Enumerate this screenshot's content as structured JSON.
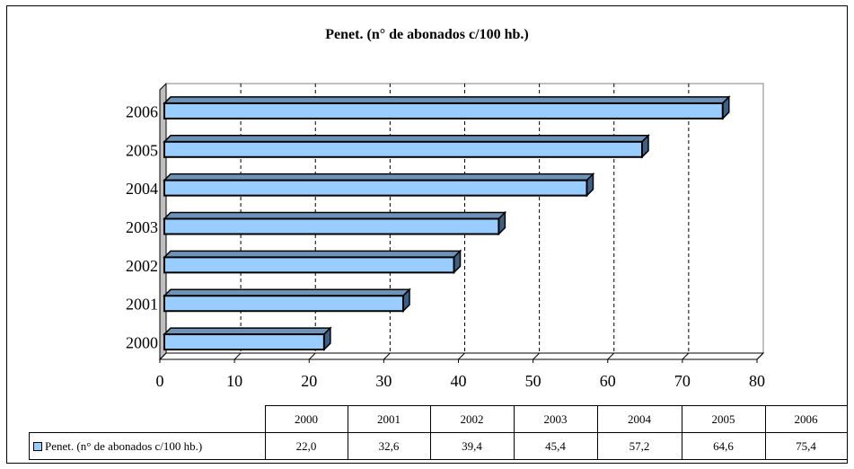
{
  "chart_data": {
    "type": "bar",
    "orientation": "horizontal",
    "three_d": true,
    "title": "Penet. (n° de abonados c/100 hb.)",
    "categories": [
      "2000",
      "2001",
      "2002",
      "2003",
      "2004",
      "2005",
      "2006"
    ],
    "series": [
      {
        "name": "Penet. (n° de abonados c/100 hb.)",
        "values": [
          22.0,
          32.6,
          39.4,
          45.4,
          57.2,
          64.6,
          75.4
        ],
        "value_labels": [
          "22,0",
          "32,6",
          "39,4",
          "45,4",
          "57,2",
          "64,6",
          "75,4"
        ],
        "color": "#99CCFF"
      }
    ],
    "xlim": [
      0,
      80
    ],
    "xticks": [
      "0",
      "10",
      "20",
      "30",
      "40",
      "50",
      "60",
      "70",
      "80"
    ],
    "gridlines": "dashed vertical",
    "legend": "data table below chart"
  },
  "colors": {
    "bar_fill": "#99CCFF",
    "bar_top": "#6E93B8",
    "bar_side": "#3F5F80",
    "wall": "#BFBFBF"
  }
}
